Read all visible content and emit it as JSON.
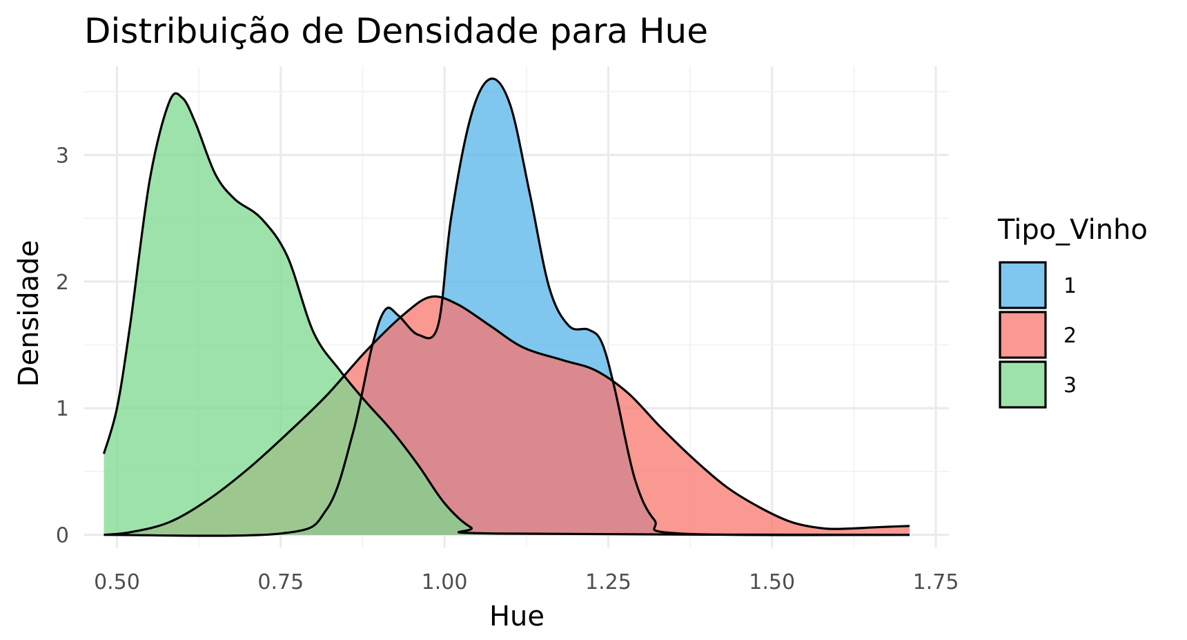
{
  "chart_data": {
    "type": "area",
    "title": "Distribuição de Densidade para Hue",
    "xlabel": "Hue",
    "ylabel": "Densidade",
    "xlim": [
      0.45,
      1.77
    ],
    "ylim": [
      -0.1,
      3.7
    ],
    "xticks": [
      "0.50",
      "0.75",
      "1.00",
      "1.25",
      "1.50",
      "1.75"
    ],
    "yticks": [
      "0",
      "1",
      "2",
      "3"
    ],
    "grid": true,
    "legend": {
      "title": "Tipo_Vinho",
      "position": "right"
    },
    "series": [
      {
        "name": "1",
        "color": "#56B4E9",
        "points": [
          [
            0.48,
            0
          ],
          [
            0.75,
            0.01
          ],
          [
            0.82,
            0.2
          ],
          [
            0.86,
            0.8
          ],
          [
            0.89,
            1.5
          ],
          [
            0.91,
            1.78
          ],
          [
            0.93,
            1.73
          ],
          [
            0.96,
            1.58
          ],
          [
            0.99,
            1.65
          ],
          [
            1.01,
            2.5
          ],
          [
            1.04,
            3.3
          ],
          [
            1.07,
            3.6
          ],
          [
            1.1,
            3.4
          ],
          [
            1.13,
            2.7
          ],
          [
            1.16,
            1.95
          ],
          [
            1.19,
            1.65
          ],
          [
            1.22,
            1.62
          ],
          [
            1.24,
            1.52
          ],
          [
            1.26,
            1.15
          ],
          [
            1.29,
            0.45
          ],
          [
            1.32,
            0.12
          ],
          [
            1.36,
            0.01
          ],
          [
            1.71,
            0
          ]
        ]
      },
      {
        "name": "2",
        "color": "#F8766D",
        "points": [
          [
            0.48,
            0
          ],
          [
            0.52,
            0.02
          ],
          [
            0.58,
            0.1
          ],
          [
            0.64,
            0.28
          ],
          [
            0.7,
            0.52
          ],
          [
            0.76,
            0.8
          ],
          [
            0.82,
            1.1
          ],
          [
            0.88,
            1.45
          ],
          [
            0.94,
            1.75
          ],
          [
            0.98,
            1.88
          ],
          [
            1.02,
            1.82
          ],
          [
            1.07,
            1.65
          ],
          [
            1.12,
            1.48
          ],
          [
            1.18,
            1.38
          ],
          [
            1.23,
            1.3
          ],
          [
            1.28,
            1.12
          ],
          [
            1.33,
            0.85
          ],
          [
            1.38,
            0.6
          ],
          [
            1.43,
            0.38
          ],
          [
            1.48,
            0.22
          ],
          [
            1.53,
            0.1
          ],
          [
            1.58,
            0.05
          ],
          [
            1.62,
            0.05
          ],
          [
            1.66,
            0.06
          ],
          [
            1.71,
            0.07
          ]
        ]
      },
      {
        "name": "3",
        "color": "#7CD88F",
        "points": [
          [
            0.48,
            0.64
          ],
          [
            0.5,
            1.0
          ],
          [
            0.52,
            1.65
          ],
          [
            0.55,
            2.8
          ],
          [
            0.58,
            3.42
          ],
          [
            0.6,
            3.45
          ],
          [
            0.62,
            3.25
          ],
          [
            0.65,
            2.85
          ],
          [
            0.68,
            2.65
          ],
          [
            0.72,
            2.5
          ],
          [
            0.76,
            2.2
          ],
          [
            0.8,
            1.6
          ],
          [
            0.84,
            1.3
          ],
          [
            0.88,
            1.05
          ],
          [
            0.92,
            0.82
          ],
          [
            0.96,
            0.55
          ],
          [
            1.0,
            0.25
          ],
          [
            1.04,
            0.06
          ],
          [
            1.08,
            0.01
          ],
          [
            1.71,
            0
          ]
        ]
      }
    ]
  }
}
